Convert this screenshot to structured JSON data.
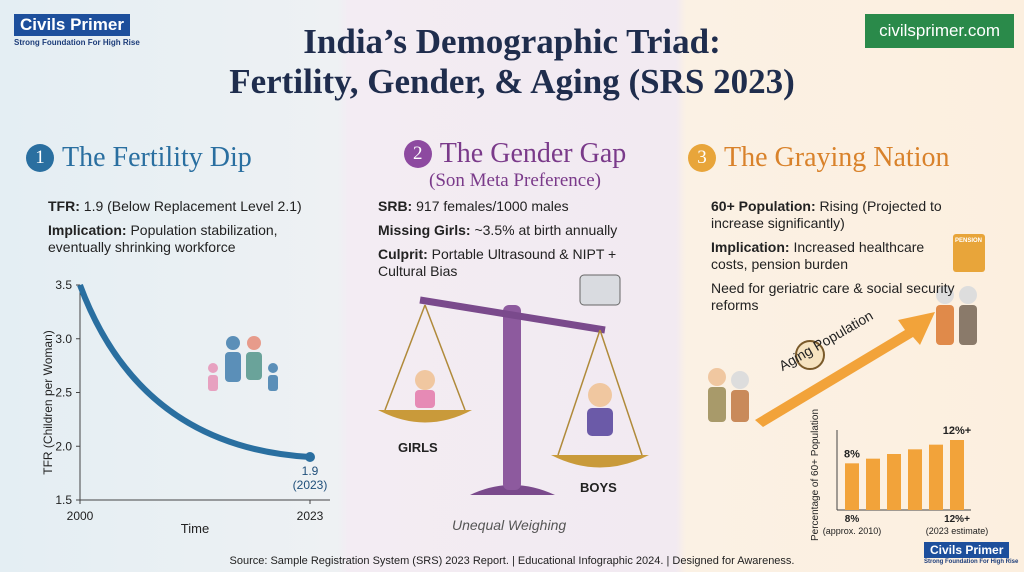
{
  "header": {
    "logo_title": "Civils Primer",
    "logo_tagline": "Strong Foundation For High Rise",
    "title_line1": "India’s Demographic Triad:",
    "title_line2": "Fertility, Gender, & Aging (SRS 2023)",
    "site": "civilsprimer.com"
  },
  "panels": [
    {
      "number": "1",
      "title": "The Fertility Dip",
      "points": [
        {
          "label": "TFR:",
          "text": "1.9 (Below Replacement Level 2.1)"
        },
        {
          "label": "Implication:",
          "text": "Population stabilization, eventually shrinking workforce"
        }
      ],
      "chart": {
        "type": "line",
        "x_label": "Time",
        "y_label": "TFR (Children per Woman)",
        "x": [
          2000,
          2023
        ],
        "values": [
          3.5,
          1.9
        ],
        "color": "#2a6fa0",
        "xlim": [
          2000,
          2023
        ],
        "xticks": [
          2000,
          2023
        ],
        "ylim": [
          1.5,
          3.5
        ],
        "yticks": [
          3.5,
          {
            "value": 3,
            "label": "3.0"
          },
          2.5,
          {
            "value": 2,
            "label": "2.0"
          },
          1.5
        ],
        "end_label": "1.9",
        "end_note": "(2023)"
      }
    },
    {
      "number": "2",
      "title": "The Gender Gap",
      "subtitle": "(Son Meta Preference)",
      "points": [
        {
          "label": "SRB:",
          "text": "917 females/1000 males"
        },
        {
          "label": "Missing Girls:",
          "text": "~3.5% at birth annually"
        },
        {
          "label": "Culprit:",
          "text": "Portable Ultrasound & NIPT + Cultural Bias"
        }
      ],
      "left_pan": "GIRLS",
      "right_pan": "BOYS",
      "caption": "Unequal Weighing"
    },
    {
      "number": "3",
      "title": "The Graying Nation",
      "points": [
        {
          "label": "60+ Population:",
          "text": "Rising (Projected to increase significantly)"
        },
        {
          "label": "Implication:",
          "text": "Increased healthcare costs, pension burden"
        },
        {
          "label": "",
          "text": "Need for geriatric care & social security reforms"
        }
      ],
      "pension_icon": "PENSION",
      "arrow_label": "Aging Population",
      "chart": {
        "type": "bar",
        "y_label": "Percentage of 60+ Population",
        "values": [
          8,
          8.8,
          9.6,
          10.4,
          11.2,
          12
        ],
        "value_labels": [
          "8%",
          null,
          null,
          null,
          null,
          "12%+"
        ],
        "color": "#f2a33a",
        "start_label": "8%",
        "start_note": "(approx. 2010)",
        "end_label": "12%+",
        "end_note": "(2023 estimate)"
      }
    }
  ],
  "footer": "Source: Sample Registration System (SRS) 2023 Report. | Educational Infographic 2024. | Designed for Awareness."
}
